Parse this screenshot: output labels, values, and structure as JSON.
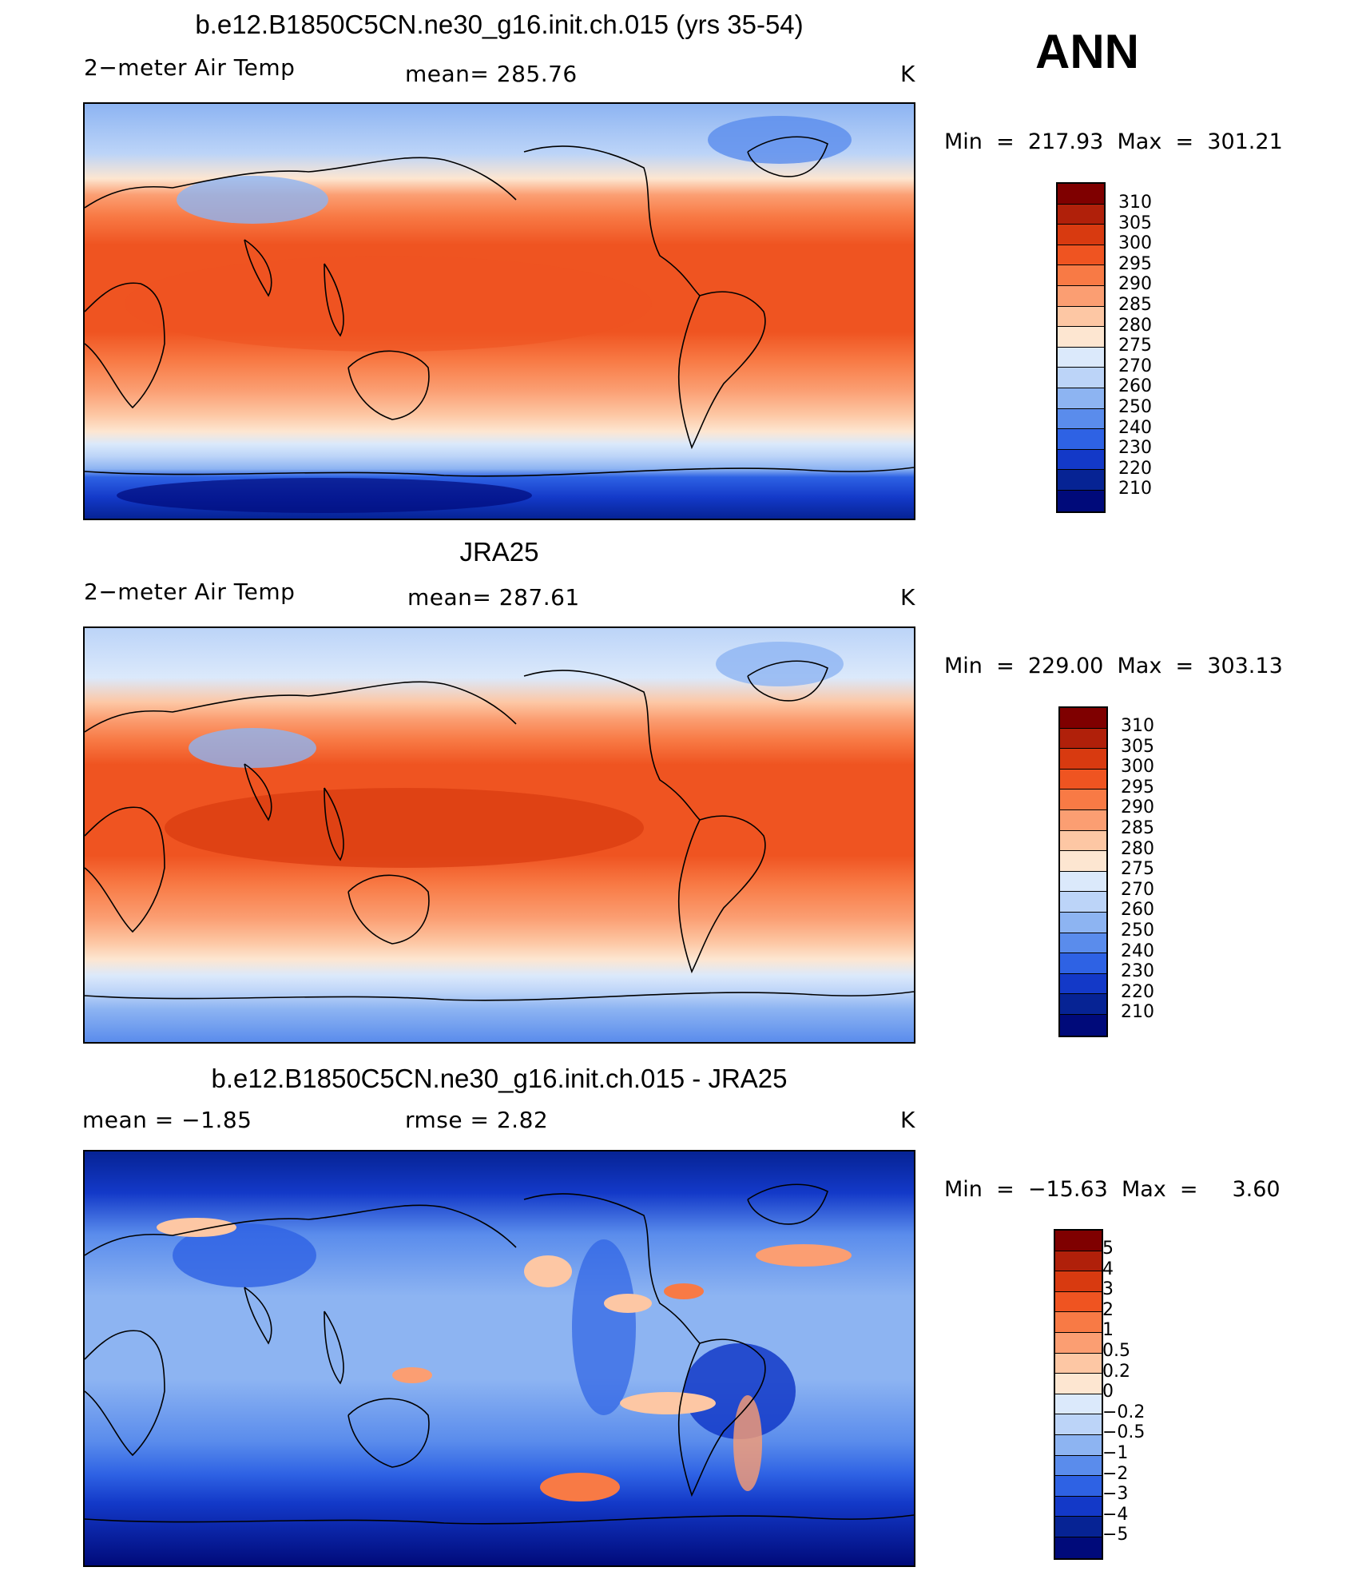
{
  "season": "ANN",
  "panels": [
    {
      "title": "b.e12.B1850C5CN.ne30_g16.init.ch.015 (yrs 35-54)",
      "left_label": "2−meter Air Temp",
      "center_label": "mean=  285.76",
      "units": "K",
      "minmax": "Min  =  217.93  Max  =  301.21",
      "kind": "model"
    },
    {
      "title": "JRA25",
      "left_label": "2−meter Air Temp",
      "center_label": "mean=  287.61",
      "units": "K",
      "minmax": "Min  =  229.00  Max  =  303.13",
      "kind": "obs"
    },
    {
      "title": "b.e12.B1850C5CN.ne30_g16.init.ch.015 - JRA25",
      "left_label": "mean  =    −1.85",
      "center_label": "rmse  =     2.82",
      "units": "K",
      "minmax": "Min  =  −15.63  Max  =     3.60",
      "kind": "diff"
    }
  ],
  "colorbars": {
    "abs": {
      "labels": [
        "310",
        "305",
        "300",
        "295",
        "290",
        "285",
        "280",
        "275",
        "270",
        "260",
        "250",
        "240",
        "230",
        "220",
        "210"
      ],
      "colors": [
        "#7f0000",
        "#b0200a",
        "#d83a10",
        "#ef5421",
        "#f87a45",
        "#fb9e72",
        "#fdc7a4",
        "#fde6d1",
        "#dbe9fb",
        "#bcd4f8",
        "#8db4f2",
        "#5a8cec",
        "#2e62e4",
        "#1339c8",
        "#062394",
        "#000a7a"
      ]
    },
    "diff": {
      "labels": [
        "5",
        "4",
        "3",
        "2",
        "1",
        "0.5",
        "0.2",
        "0",
        "−0.2",
        "−0.5",
        "−1",
        "−2",
        "−3",
        "−4",
        "−5"
      ],
      "colors": [
        "#7f0000",
        "#b0200a",
        "#d83a10",
        "#ef5421",
        "#f87a45",
        "#fb9e72",
        "#fdc7a4",
        "#fde6d1",
        "#dbe9fb",
        "#bcd4f8",
        "#8db4f2",
        "#5a8cec",
        "#2e62e4",
        "#1339c8",
        "#062394",
        "#000a7a"
      ]
    }
  }
}
